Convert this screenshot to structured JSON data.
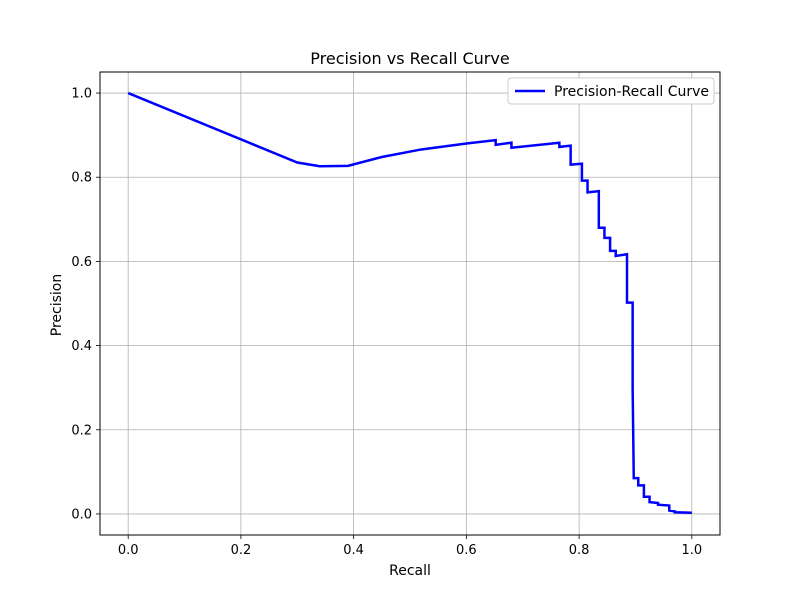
{
  "chart_data": {
    "type": "line",
    "title": "Precision vs Recall Curve",
    "xlabel": "Recall",
    "ylabel": "Precision",
    "xlim": [
      -0.05,
      1.05
    ],
    "ylim": [
      -0.05,
      1.05
    ],
    "xticks": [
      0.0,
      0.2,
      0.4,
      0.6,
      0.8,
      1.0
    ],
    "xtick_labels": [
      "0.0",
      "0.2",
      "0.4",
      "0.6",
      "0.8",
      "1.0"
    ],
    "yticks": [
      0.0,
      0.2,
      0.4,
      0.6,
      0.8,
      1.0
    ],
    "ytick_labels": [
      "0.0",
      "0.2",
      "0.4",
      "0.6",
      "0.8",
      "1.0"
    ],
    "grid": true,
    "legend_position": "top-right",
    "series": [
      {
        "name": "Precision-Recall Curve",
        "color": "#0000ff",
        "x": [
          0.0,
          0.3,
          0.34,
          0.39,
          0.45,
          0.52,
          0.6,
          0.652,
          0.652,
          0.68,
          0.68,
          0.765,
          0.765,
          0.785,
          0.785,
          0.805,
          0.805,
          0.815,
          0.815,
          0.835,
          0.835,
          0.845,
          0.845,
          0.855,
          0.855,
          0.865,
          0.865,
          0.885,
          0.885,
          0.895,
          0.895,
          0.897,
          0.897,
          0.905,
          0.905,
          0.915,
          0.915,
          0.925,
          0.925,
          0.94,
          0.94,
          0.96,
          0.96,
          0.97,
          0.97,
          1.0
        ],
        "y": [
          1.0,
          0.835,
          0.826,
          0.827,
          0.848,
          0.866,
          0.88,
          0.888,
          0.877,
          0.882,
          0.87,
          0.882,
          0.872,
          0.875,
          0.83,
          0.832,
          0.792,
          0.792,
          0.764,
          0.767,
          0.68,
          0.68,
          0.656,
          0.656,
          0.625,
          0.625,
          0.613,
          0.617,
          0.502,
          0.502,
          0.3,
          0.085,
          0.085,
          0.085,
          0.068,
          0.068,
          0.041,
          0.041,
          0.028,
          0.026,
          0.022,
          0.02,
          0.008,
          0.006,
          0.004,
          0.003
        ]
      }
    ]
  }
}
